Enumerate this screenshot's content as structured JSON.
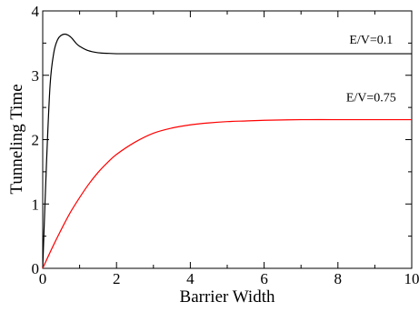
{
  "chart_data": {
    "type": "line",
    "title": "",
    "xlabel": "Barrier Width",
    "ylabel": "Tunneling Time",
    "xlim": [
      0,
      10
    ],
    "ylim": [
      0,
      4
    ],
    "xticks": [
      0,
      2,
      4,
      6,
      8,
      10
    ],
    "yticks": [
      0,
      1,
      2,
      3,
      4
    ],
    "grid": false,
    "series": [
      {
        "name": "E/V=0.1",
        "color": "#000000",
        "x": [
          0,
          0.1,
          0.2,
          0.3,
          0.4,
          0.5,
          0.6,
          0.7,
          0.8,
          0.9,
          1.0,
          1.2,
          1.4,
          1.6,
          1.8,
          2.0,
          2.5,
          3,
          4,
          5,
          6,
          7,
          8,
          9,
          10
        ],
        "y": [
          0,
          1.6,
          2.85,
          3.35,
          3.55,
          3.62,
          3.64,
          3.62,
          3.57,
          3.5,
          3.45,
          3.39,
          3.36,
          3.345,
          3.34,
          3.335,
          3.335,
          3.335,
          3.335,
          3.335,
          3.335,
          3.335,
          3.335,
          3.335,
          3.335
        ]
      },
      {
        "name": "E/V=0.75",
        "color": "#ff0000",
        "x": [
          0,
          0.25,
          0.5,
          0.75,
          1.0,
          1.25,
          1.5,
          1.75,
          2.0,
          2.5,
          3.0,
          3.5,
          4.0,
          4.5,
          5.0,
          5.5,
          6.0,
          7.0,
          8.0,
          9.0,
          10.0
        ],
        "y": [
          0,
          0.31,
          0.6,
          0.87,
          1.1,
          1.31,
          1.49,
          1.64,
          1.77,
          1.96,
          2.1,
          2.18,
          2.23,
          2.26,
          2.28,
          2.29,
          2.3,
          2.31,
          2.31,
          2.31,
          2.31
        ]
      }
    ],
    "annotations": [
      {
        "text": "E/V=0.1",
        "series": 0
      },
      {
        "text": "E/V=0.75",
        "series": 1
      }
    ]
  }
}
